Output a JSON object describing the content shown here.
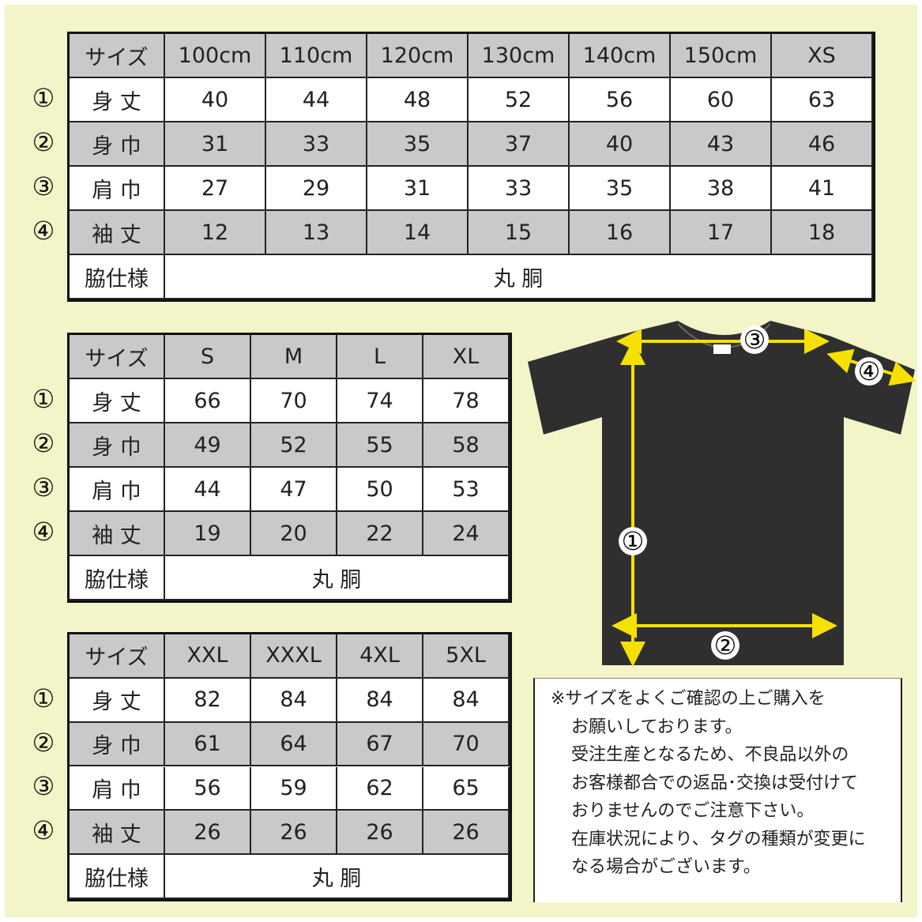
{
  "tables": [
    {
      "header": [
        "サイズ",
        "100cm",
        "110cm",
        "120cm",
        "130cm",
        "140cm",
        "150cm",
        "XS"
      ],
      "rows": [
        {
          "marker": "①",
          "label": "身 丈",
          "values": [
            40,
            44,
            48,
            52,
            56,
            60,
            63
          ]
        },
        {
          "marker": "②",
          "label": "身 巾",
          "values": [
            31,
            33,
            35,
            37,
            40,
            43,
            46
          ]
        },
        {
          "marker": "③",
          "label": "肩 巾",
          "values": [
            27,
            29,
            31,
            33,
            35,
            38,
            41
          ]
        },
        {
          "marker": "④",
          "label": "袖 丈",
          "values": [
            12,
            13,
            14,
            15,
            16,
            17,
            18
          ]
        }
      ],
      "footer": {
        "label": "脇仕様",
        "value": "丸 胴"
      }
    },
    {
      "header": [
        "サイズ",
        "S",
        "M",
        "L",
        "XL"
      ],
      "rows": [
        {
          "marker": "①",
          "label": "身 丈",
          "values": [
            66,
            70,
            74,
            78
          ]
        },
        {
          "marker": "②",
          "label": "身 巾",
          "values": [
            49,
            52,
            55,
            58
          ]
        },
        {
          "marker": "③",
          "label": "肩 巾",
          "values": [
            44,
            47,
            50,
            53
          ]
        },
        {
          "marker": "④",
          "label": "袖 丈",
          "values": [
            19,
            20,
            22,
            24
          ]
        }
      ],
      "footer": {
        "label": "脇仕様",
        "value": "丸 胴"
      }
    },
    {
      "header": [
        "サイズ",
        "XXL",
        "XXXL",
        "4XL",
        "5XL"
      ],
      "rows": [
        {
          "marker": "①",
          "label": "身 丈",
          "values": [
            82,
            84,
            84,
            84
          ]
        },
        {
          "marker": "②",
          "label": "身 巾",
          "values": [
            61,
            64,
            67,
            70
          ]
        },
        {
          "marker": "③",
          "label": "肩 巾",
          "values": [
            56,
            59,
            62,
            65
          ]
        },
        {
          "marker": "④",
          "label": "袖 丈",
          "values": [
            26,
            26,
            26,
            26
          ]
        }
      ],
      "footer": {
        "label": "脇仕様",
        "value": "丸 胴"
      }
    }
  ],
  "diagram": {
    "markers": [
      "③",
      "④",
      "①",
      "②"
    ]
  },
  "note": {
    "lines": [
      "※サイズをよくご確認の上ご購入を",
      "お願いしております。",
      "受注生産となるため、不良品以外の",
      "お客様都合での返品･交換は受付けて",
      "おりませんのでご注意下さい。",
      "在庫状況により、タグの種類が変更に",
      "なる場合がございます。"
    ]
  }
}
